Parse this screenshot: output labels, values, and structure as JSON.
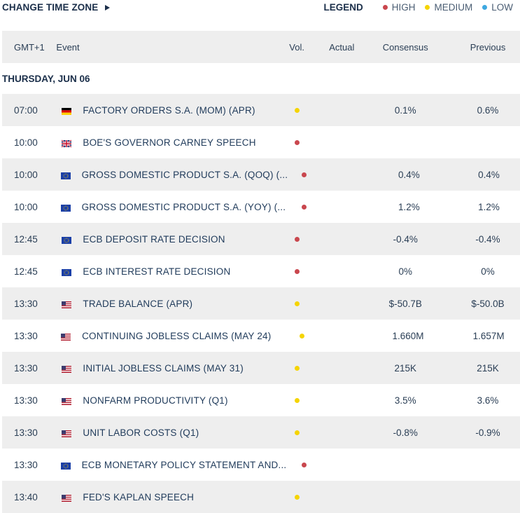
{
  "header": {
    "change_tz_label": "CHANGE TIME ZONE",
    "legend_title": "LEGEND",
    "legend_items": [
      {
        "label": "HIGH",
        "color": "#c9474e"
      },
      {
        "label": "MEDIUM",
        "color": "#f5d400"
      },
      {
        "label": "LOW",
        "color": "#3fa8e0"
      }
    ]
  },
  "columns": {
    "time": "GMT+1",
    "event": "Event",
    "vol": "Vol.",
    "actual": "Actual",
    "consensus": "Consensus",
    "previous": "Previous"
  },
  "day_label": "THURSDAY, JUN 06",
  "rows": [
    {
      "time": "07:00",
      "flag": "de",
      "event": "FACTORY ORDERS S.A. (MOM) (APR)",
      "vol": "medium",
      "actual": "",
      "consensus": "0.1%",
      "previous": "0.6%"
    },
    {
      "time": "10:00",
      "flag": "gb",
      "event": "BOE'S GOVERNOR CARNEY SPEECH",
      "vol": "high",
      "actual": "",
      "consensus": "",
      "previous": ""
    },
    {
      "time": "10:00",
      "flag": "eu",
      "event": "GROSS DOMESTIC PRODUCT S.A. (QOQ) (...",
      "vol": "high",
      "actual": "",
      "consensus": "0.4%",
      "previous": "0.4%"
    },
    {
      "time": "10:00",
      "flag": "eu",
      "event": "GROSS DOMESTIC PRODUCT S.A. (YOY) (...",
      "vol": "high",
      "actual": "",
      "consensus": "1.2%",
      "previous": "1.2%"
    },
    {
      "time": "12:45",
      "flag": "eu",
      "event": "ECB DEPOSIT RATE DECISION",
      "vol": "high",
      "actual": "",
      "consensus": "-0.4%",
      "previous": "-0.4%"
    },
    {
      "time": "12:45",
      "flag": "eu",
      "event": "ECB INTEREST RATE DECISION",
      "vol": "high",
      "actual": "",
      "consensus": "0%",
      "previous": "0%"
    },
    {
      "time": "13:30",
      "flag": "us",
      "event": "TRADE BALANCE (APR)",
      "vol": "medium",
      "actual": "",
      "consensus": "$-50.7B",
      "previous": "$-50.0B"
    },
    {
      "time": "13:30",
      "flag": "us",
      "event": "CONTINUING JOBLESS CLAIMS (MAY 24)",
      "vol": "medium",
      "actual": "",
      "consensus": "1.660M",
      "previous": "1.657M"
    },
    {
      "time": "13:30",
      "flag": "us",
      "event": "INITIAL JOBLESS CLAIMS (MAY 31)",
      "vol": "medium",
      "actual": "",
      "consensus": "215K",
      "previous": "215K"
    },
    {
      "time": "13:30",
      "flag": "us",
      "event": "NONFARM PRODUCTIVITY (Q1)",
      "vol": "medium",
      "actual": "",
      "consensus": "3.5%",
      "previous": "3.6%"
    },
    {
      "time": "13:30",
      "flag": "us",
      "event": "UNIT LABOR COSTS (Q1)",
      "vol": "medium",
      "actual": "",
      "consensus": "-0.8%",
      "previous": "-0.9%"
    },
    {
      "time": "13:30",
      "flag": "eu",
      "event": "ECB MONETARY POLICY STATEMENT AND...",
      "vol": "high",
      "actual": "",
      "consensus": "",
      "previous": ""
    },
    {
      "time": "13:40",
      "flag": "us",
      "event": "FED'S KAPLAN SPEECH",
      "vol": "medium",
      "actual": "",
      "consensus": "",
      "previous": ""
    }
  ],
  "vol_colors": {
    "high": "#c9474e",
    "medium": "#f5d400",
    "low": "#3fa8e0"
  }
}
